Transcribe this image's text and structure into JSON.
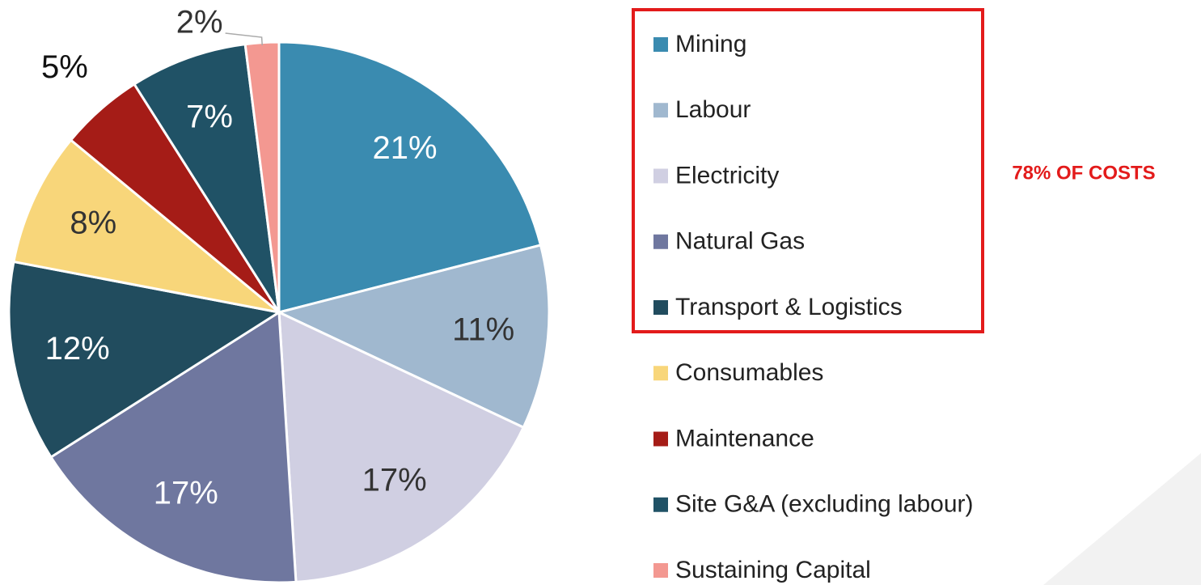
{
  "chart_data": {
    "type": "pie",
    "categories": [
      "Mining",
      "Labour",
      "Electricity",
      "Natural Gas",
      "Transport & Logistics",
      "Consumables",
      "Maintenance",
      "Site G&A (excluding labour)",
      "Sustaining Capital"
    ],
    "values": [
      21,
      11,
      17,
      17,
      12,
      8,
      5,
      7,
      2
    ],
    "value_labels": [
      "21%",
      "11%",
      "17%",
      "17%",
      "12%",
      "8%",
      "5%",
      "7%",
      "2%"
    ],
    "colors": [
      "#3a8bb0",
      "#a0b8cf",
      "#d0cfe2",
      "#6f779f",
      "#214c5e",
      "#f8d67a",
      "#a51c17",
      "#205266",
      "#f39891"
    ],
    "legend": "right",
    "annotations": [
      "78% OF COSTS"
    ]
  }
}
